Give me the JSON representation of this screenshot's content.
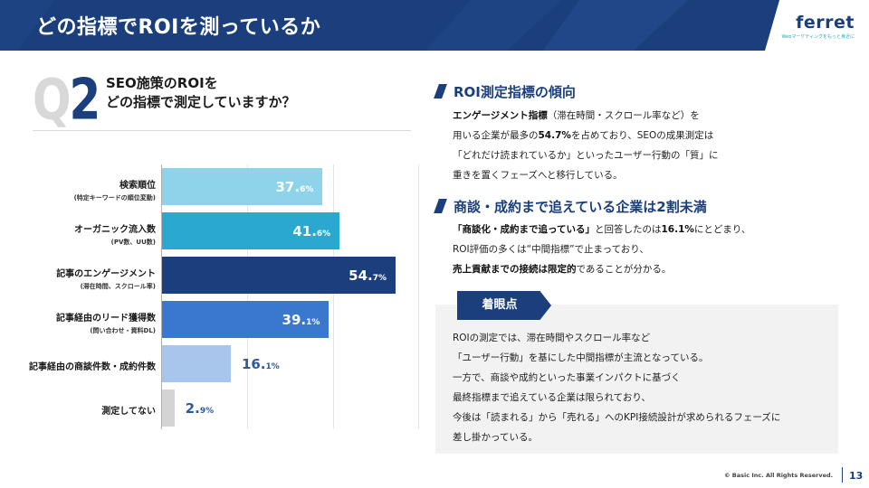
{
  "header": {
    "title": "どの指標でROIを測っているか",
    "logo": "ferret",
    "logo_tagline": "Webマーケティングをもっと身近に"
  },
  "question": {
    "q": "Q",
    "num": "2",
    "line1": "SEO施策のROIを",
    "line2": "どの指標で測定していますか？"
  },
  "chart_data": {
    "type": "bar",
    "orientation": "horizontal",
    "categories": [
      {
        "label": "検索順位",
        "sub": "(特定キーワードの順位変動)"
      },
      {
        "label": "オーガニック流入数",
        "sub": "(PV数、UU数)"
      },
      {
        "label": "記事のエンゲージメント",
        "sub": "(滞在時間、スクロール率)"
      },
      {
        "label": "記事経由のリード獲得数",
        "sub": "(問い合わせ・資料DL)"
      },
      {
        "label": "記事経由の商談件数・成約件数",
        "sub": ""
      },
      {
        "label": "測定してない",
        "sub": ""
      }
    ],
    "values": [
      37.6,
      41.6,
      54.7,
      39.1,
      16.1,
      2.9
    ],
    "value_labels": [
      {
        "int": "37.",
        "dec": "6%"
      },
      {
        "int": "41.",
        "dec": "6%"
      },
      {
        "int": "54.",
        "dec": "7%"
      },
      {
        "int": "39.",
        "dec": "1%"
      },
      {
        "int": "16.",
        "dec": "1%"
      },
      {
        "int": "2.",
        "dec": "9%"
      }
    ],
    "colors": [
      "#8fd3ea",
      "#2aa8d0",
      "#1a3f7c",
      "#3a78d0",
      "#a8c6ec",
      "#d4d4d4"
    ],
    "label_colors": [
      "#ffffff",
      "#ffffff",
      "#ffffff",
      "#ffffff",
      "#2d5a9e",
      "#2d5a9e"
    ],
    "xlim": [
      0,
      60
    ]
  },
  "section1": {
    "heading": "ROI測定指標の傾向",
    "lines": [
      [
        {
          "b": true,
          "t": "エンゲージメント指標"
        },
        {
          "b": false,
          "t": "（滞在時間・スクロール率など）を"
        }
      ],
      [
        {
          "b": false,
          "t": "用いる企業が最多の"
        },
        {
          "b": true,
          "t": "54.7%"
        },
        {
          "b": false,
          "t": "を占めており、SEOの成果測定は"
        }
      ],
      [
        {
          "b": false,
          "t": "「どれだけ読まれているか」といったユーザー行動の「質」に"
        }
      ],
      [
        {
          "b": false,
          "t": "重きを置くフェーズへと移行している。"
        }
      ]
    ]
  },
  "section2": {
    "heading": "商談・成約まで追えている企業は2割未満",
    "lines": [
      [
        {
          "b": true,
          "t": "「商談化・成約まで追っている」"
        },
        {
          "b": false,
          "t": "と回答したのは"
        },
        {
          "b": true,
          "t": "16.1%"
        },
        {
          "b": false,
          "t": "にとどまり、"
        }
      ],
      [
        {
          "b": false,
          "t": "ROI評価の多くは“中間指標”で止まっており、"
        }
      ],
      [
        {
          "b": true,
          "t": "売上貢献までの接続は限定的"
        },
        {
          "b": false,
          "t": "であることが分かる。"
        }
      ]
    ]
  },
  "focus": {
    "tab": "着眼点",
    "lines": [
      "ROIの測定では、滞在時間やスクロール率など",
      "「ユーザー行動」を基にした中間指標が主流となっている。",
      "一方で、商談や成約といった事業インパクトに基づく",
      "最終指標まで追えている企業は限られており、",
      "今後は「読まれる」から「売れる」へのKPI接続設計が求められるフェーズに",
      "差し掛かっている。"
    ]
  },
  "footer": {
    "copyright": "© Basic Inc. All Rights Reserved.",
    "page": "13"
  }
}
